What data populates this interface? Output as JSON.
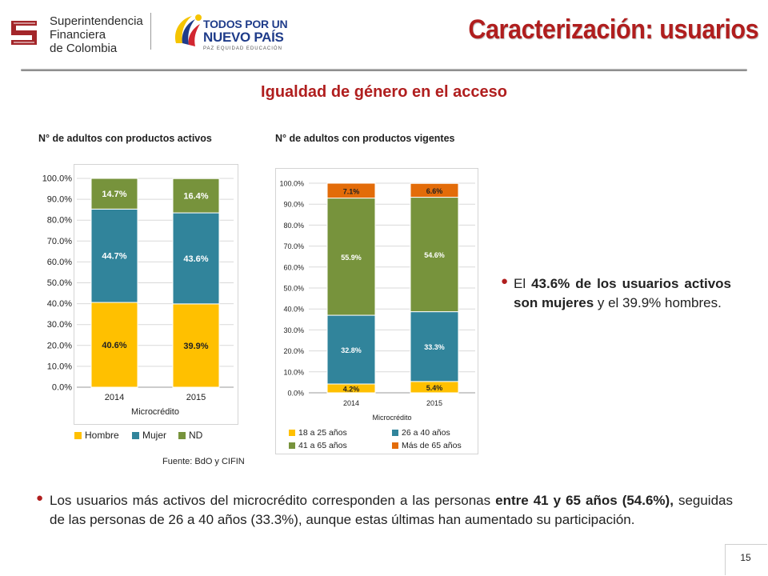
{
  "header": {
    "logo_sfc_lines": [
      "Superintendencia",
      "Financiera",
      "de Colombia"
    ],
    "logo_tpunp_line1": "TODOS POR UN",
    "logo_tpunp_line2": "NUEVO PAÍS",
    "logo_tpunp_line3": "PAZ EQUIDAD EDUCACIÓN",
    "title": "Caracterización: usuarios"
  },
  "subtitle": "Igualdad de género en el acceso",
  "charts": {
    "chart1_title": "N° de adultos con productos activos",
    "chart2_title": "N° de adultos con productos vigentes"
  },
  "chart_data": [
    {
      "type": "bar",
      "stacked": true,
      "categories": [
        "2014",
        "2015"
      ],
      "xlabel": "Microcrédito",
      "ylim": [
        0,
        100
      ],
      "yticks": [
        "0.0%",
        "10.0%",
        "20.0%",
        "30.0%",
        "40.0%",
        "50.0%",
        "60.0%",
        "70.0%",
        "80.0%",
        "90.0%",
        "100.0%"
      ],
      "legend_position": "bottom",
      "series": [
        {
          "name": "Hombre",
          "color": "#ffc000",
          "values": [
            40.6,
            39.9
          ],
          "labels": [
            "40.6%",
            "39.9%"
          ]
        },
        {
          "name": "Mujer",
          "color": "#31849b",
          "values": [
            44.7,
            43.6
          ],
          "labels": [
            "44.7%",
            "43.6%"
          ]
        },
        {
          "name": "ND",
          "color": "#77933c",
          "values": [
            14.7,
            16.4
          ],
          "labels": [
            "14.7%",
            "16.4%"
          ]
        }
      ]
    },
    {
      "type": "bar",
      "stacked": true,
      "categories": [
        "2014",
        "2015"
      ],
      "xlabel": "Microcrédito",
      "ylim": [
        0,
        100
      ],
      "yticks": [
        "0.0%",
        "10.0%",
        "20.0%",
        "30.0%",
        "40.0%",
        "50.0%",
        "60.0%",
        "70.0%",
        "80.0%",
        "90.0%",
        "100.0%"
      ],
      "legend_position": "bottom",
      "series": [
        {
          "name": "18 a 25 años",
          "color": "#ffc000",
          "values": [
            4.2,
            5.4
          ],
          "labels": [
            "4.2%",
            "5.4%"
          ]
        },
        {
          "name": "26 a 40 años",
          "color": "#31849b",
          "values": [
            32.8,
            33.3
          ],
          "labels": [
            "32.8%",
            "33.3%"
          ]
        },
        {
          "name": "41 a 65 años",
          "color": "#77933c",
          "values": [
            55.9,
            54.6
          ],
          "labels": [
            "55.9%",
            "54.6%"
          ]
        },
        {
          "name": "Más de 65 años",
          "color": "#e36c09",
          "values": [
            7.1,
            6.6
          ],
          "labels": [
            "7.1%",
            "6.6%"
          ]
        }
      ]
    }
  ],
  "source": "Fuente: BdO y CIFIN",
  "bullet1": {
    "pre": "El ",
    "bold": "43.6% de los usuarios activos son mujeres",
    "post": " y el 39.9% hombres."
  },
  "bullet2": {
    "pre": "Los usuarios más activos del microcrédito corresponden a las personas ",
    "bold1": "entre 41 y 65 años (54.6%),",
    "post": " seguidas de las personas de 26 a 40 años (33.3%), aunque estas últimas han aumentado su participación."
  },
  "bullet_icon": "bullet-dot-icon",
  "page_number": "15",
  "colors": {
    "accent": "#b01e1e"
  }
}
